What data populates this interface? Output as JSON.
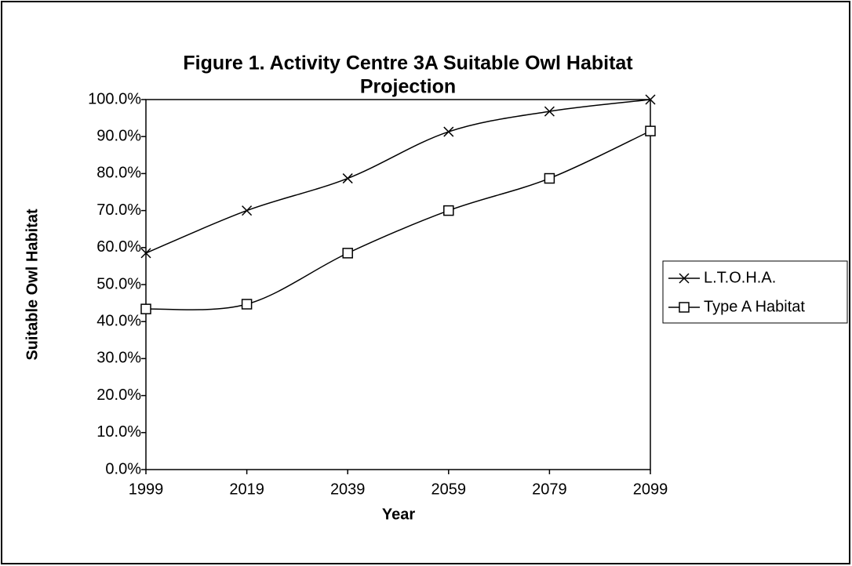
{
  "chart_data": {
    "type": "line",
    "title": "Figure 1.  Activity Centre 3A Suitable Owl Habitat",
    "subtitle": "Projection",
    "x_label": "Year",
    "y_label": "Suitable Owl Habitat",
    "x": [
      1999,
      2019,
      2039,
      2059,
      2079,
      2099
    ],
    "xlim": [
      1999,
      2099
    ],
    "xticks": [
      1999,
      2019,
      2039,
      2059,
      2079,
      2099
    ],
    "ylim": [
      0,
      100
    ],
    "yticks": [
      {
        "value": 0,
        "label": "0.0%"
      },
      {
        "value": 10,
        "label": "10.0%"
      },
      {
        "value": 20,
        "label": "20.0%"
      },
      {
        "value": 30,
        "label": "30.0%"
      },
      {
        "value": 40,
        "label": "40.0%"
      },
      {
        "value": 50,
        "label": "50.0%"
      },
      {
        "value": 60,
        "label": "60.0%"
      },
      {
        "value": 70,
        "label": "70.0%"
      },
      {
        "value": 80,
        "label": "80.0%"
      },
      {
        "value": 90,
        "label": "90.0%"
      },
      {
        "value": 100,
        "label": "100.0%"
      }
    ],
    "legend": "right",
    "smooth": true,
    "series": [
      {
        "name": "L.T.O.H.A.",
        "color": "#000000",
        "marker": "x",
        "values": [
          58.5,
          70,
          78.7,
          91.3,
          96.8,
          100
        ]
      },
      {
        "name": "Type A Habitat",
        "color": "#000000",
        "marker": "square",
        "values": [
          43.4,
          44.7,
          58.5,
          70,
          78.7,
          91.5
        ]
      }
    ]
  }
}
